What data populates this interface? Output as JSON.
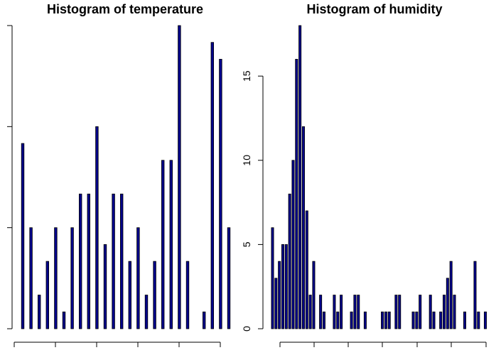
{
  "chart_data": [
    {
      "type": "bar",
      "title": "Histogram of temperature",
      "xlabel": "",
      "ylabel": "",
      "values": [
        5.5,
        3,
        1,
        2,
        3,
        0.5,
        3,
        4,
        4,
        6,
        2.5,
        4,
        4,
        2,
        3,
        1,
        2,
        5,
        5,
        9,
        2,
        0,
        0.5,
        8.5,
        8,
        3
      ],
      "ylim": [
        0,
        9
      ],
      "bar_color": "#00008b",
      "y_tick_labels_visible": false
    },
    {
      "type": "bar",
      "title": "Histogram of humidity",
      "xlabel": "",
      "ylabel": "",
      "values": [
        6,
        3,
        4,
        5,
        5,
        8,
        10,
        16,
        18,
        12,
        7,
        2,
        4,
        0,
        2,
        1,
        0,
        0,
        2,
        1,
        2,
        0,
        0,
        1,
        2,
        2,
        0,
        1,
        0,
        0,
        0,
        0,
        1,
        1,
        1,
        0,
        2,
        2,
        0,
        0,
        0,
        1,
        1,
        2,
        0,
        0,
        2,
        1,
        0,
        1,
        2,
        3,
        4,
        2,
        0,
        0,
        1,
        0,
        0,
        4,
        1,
        0,
        1
      ],
      "ylim": [
        0,
        18
      ],
      "yticks": [
        0,
        5,
        10,
        15
      ],
      "bar_color": "#00008b"
    }
  ]
}
